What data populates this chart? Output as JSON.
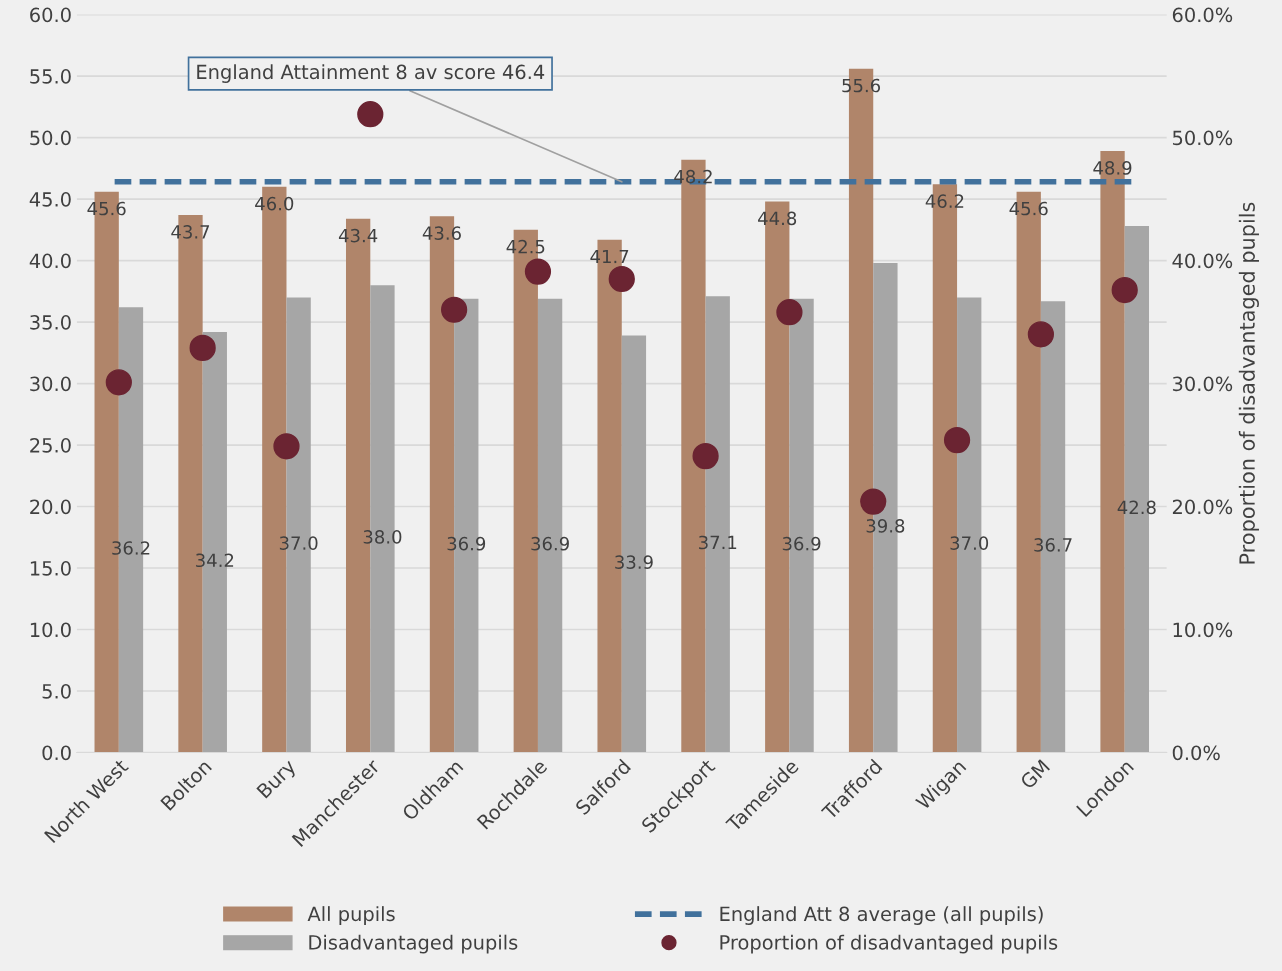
{
  "chart_data": {
    "type": "bar",
    "categories": [
      "North West",
      "Bolton",
      "Bury",
      "Manchester",
      "Oldham",
      "Rochdale",
      "Salford",
      "Stockport",
      "Tameside",
      "Trafford",
      "Wigan",
      "GM",
      "London"
    ],
    "series": [
      {
        "name": "All pupils",
        "color": "#b0856a",
        "values": [
          45.6,
          43.7,
          46.0,
          43.4,
          43.6,
          42.5,
          41.7,
          48.2,
          44.8,
          55.6,
          46.2,
          45.6,
          48.9
        ],
        "value_labels": [
          "45.6",
          "43.7",
          "46.0",
          "43.4",
          "43.6",
          "42.5",
          "41.7",
          "48.2",
          "44.8",
          "55.6",
          "46.2",
          "45.6",
          "48.9"
        ]
      },
      {
        "name": "Disadvantaged pupils",
        "color": "#a6a6a6",
        "values": [
          36.2,
          34.2,
          37.0,
          38.0,
          36.9,
          36.9,
          33.9,
          37.1,
          36.9,
          39.8,
          37.0,
          36.7,
          42.8
        ],
        "value_labels": [
          "36.2",
          "34.2",
          "37.0",
          "38.0",
          "36.9",
          "36.9",
          "33.9",
          "37.1",
          "36.9",
          "39.8",
          "37.0",
          "36.7",
          "42.8"
        ]
      },
      {
        "name": "Proportion of disadvantaged pupils",
        "type": "scatter",
        "axis": "y2",
        "color": "#6b2432",
        "values": [
          30.1,
          32.9,
          24.9,
          51.9,
          36.0,
          39.1,
          38.5,
          24.1,
          35.8,
          20.4,
          25.4,
          34.0,
          37.6
        ]
      }
    ],
    "ref_lines": [
      {
        "axis": "y",
        "value": 46.4,
        "label": "England Att 8 average (all pupils)",
        "color": "#41719c",
        "line_style": "dashed"
      }
    ],
    "annotations": [
      {
        "text": "England Attainment 8 av score 46.4",
        "x": "Salford",
        "y": 46.4
      }
    ],
    "y2label": "Proportion of disadvantaged pupils",
    "ylim": [
      0,
      60
    ],
    "yticks": [
      {
        "value": 0,
        "label": "0.0"
      },
      {
        "value": 5,
        "label": "5.0"
      },
      {
        "value": 10,
        "label": "10.0"
      },
      {
        "value": 15,
        "label": "15.0"
      },
      {
        "value": 20,
        "label": "20.0"
      },
      {
        "value": 25,
        "label": "25.0"
      },
      {
        "value": 30,
        "label": "30.0"
      },
      {
        "value": 35,
        "label": "35.0"
      },
      {
        "value": 40,
        "label": "40.0"
      },
      {
        "value": 45,
        "label": "45.0"
      },
      {
        "value": 50,
        "label": "50.0"
      },
      {
        "value": 55,
        "label": "55.0"
      },
      {
        "value": 60,
        "label": "60.0"
      }
    ],
    "y2lim": [
      0,
      60
    ],
    "y2ticks": [
      {
        "value": 0,
        "label": "0.0%"
      },
      {
        "value": 10,
        "label": "10.0%"
      },
      {
        "value": 20,
        "label": "20.0%"
      },
      {
        "value": 30,
        "label": "30.0%"
      },
      {
        "value": 40,
        "label": "40.0%"
      },
      {
        "value": 50,
        "label": "50.0%"
      },
      {
        "value": 60,
        "label": "60.0%"
      }
    ],
    "grid": "y",
    "legend": "bottom",
    "marker": "circle"
  }
}
